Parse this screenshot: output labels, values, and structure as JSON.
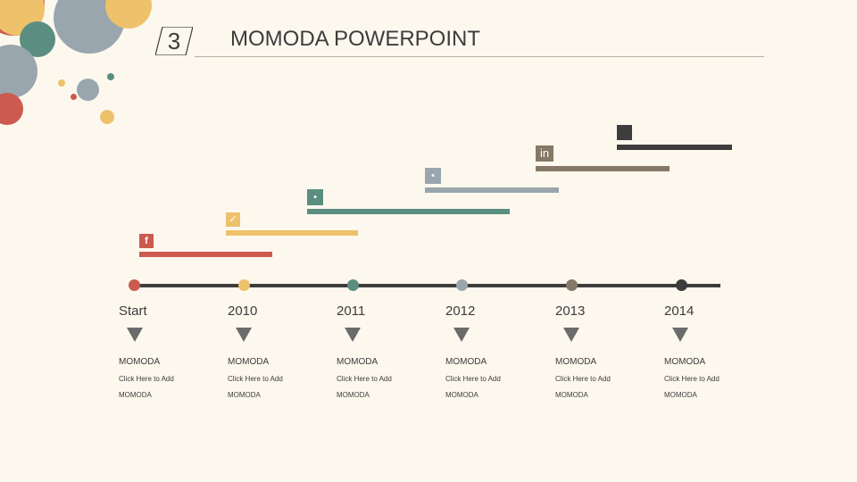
{
  "header": {
    "number": "3",
    "title": "MOMODA POWERPOINT"
  },
  "colors": {
    "red": "#cc5a4e",
    "yellow": "#eec16b",
    "teal": "#5b8e80",
    "grey": "#9aa6ad",
    "brown": "#857866",
    "dark": "#3d3d3d"
  },
  "bars": [
    {
      "icon": "facebook-icon",
      "glyph": "f"
    },
    {
      "icon": "twitter-icon",
      "glyph": "✓"
    },
    {
      "icon": "social-icon",
      "glyph": "•"
    },
    {
      "icon": "social-icon-2",
      "glyph": "•"
    },
    {
      "icon": "linkedin-icon",
      "glyph": "in"
    },
    {
      "icon": "square-icon",
      "glyph": ""
    }
  ],
  "timeline": [
    {
      "year": "Start",
      "heading": "MOMODA",
      "sub": "Click Here to Add",
      "foot": "MOMODA"
    },
    {
      "year": "2010",
      "heading": "MOMODA",
      "sub": "Click Here to Add",
      "foot": "MOMODA"
    },
    {
      "year": "2011",
      "heading": "MOMODA",
      "sub": "Click Here to Add",
      "foot": "MOMODA"
    },
    {
      "year": "2012",
      "heading": "MOMODA",
      "sub": "Click Here to Add",
      "foot": "MOMODA"
    },
    {
      "year": "2013",
      "heading": "MOMODA",
      "sub": "Click Here to Add",
      "foot": "MOMODA"
    },
    {
      "year": "2014",
      "heading": "MOMODA",
      "sub": "Click Here to Add",
      "foot": "MOMODA"
    }
  ]
}
